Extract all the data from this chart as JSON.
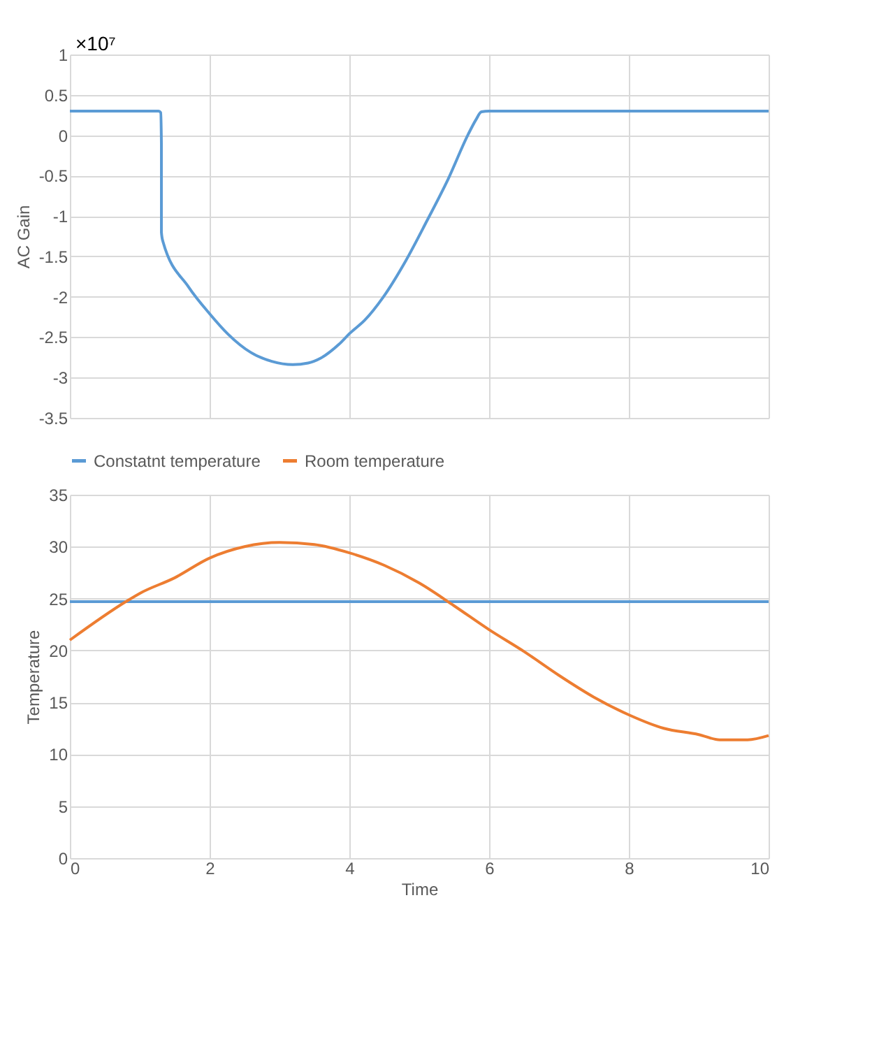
{
  "chart_data": [
    {
      "type": "line",
      "ylabel": "AC Gain",
      "annotations": [
        "×10⁷"
      ],
      "xlim": [
        0,
        10
      ],
      "xticks": [
        0,
        2,
        4,
        6,
        8,
        10
      ],
      "ylim": [
        -3.5,
        1
      ],
      "yticks": [
        -3.5,
        -3,
        -2.5,
        -2,
        -1.5,
        -1,
        -0.5,
        0,
        0.5,
        1
      ],
      "grid": true,
      "tick_labels": "y",
      "legend": false,
      "series": [
        {
          "color": "#5b9bd5",
          "x": [
            0,
            1.27,
            1.3,
            1.31,
            1.31,
            1.33,
            1.7,
            2.0,
            2.26,
            2.59,
            2.89,
            3.19,
            3.41,
            3.59,
            3.85,
            4.01,
            4.22,
            4.48,
            4.81,
            5.11,
            5.41,
            5.7,
            5.81,
            5.89,
            6.0,
            10
          ],
          "values": [
            0.3,
            0.3,
            0.28,
            -0.1,
            -1.2,
            -1.31,
            -1.88,
            -2.21,
            -2.46,
            -2.69,
            -2.8,
            -2.84,
            -2.82,
            -2.76,
            -2.59,
            -2.45,
            -2.29,
            -2.01,
            -1.55,
            -1.06,
            -0.55,
            0.01,
            0.19,
            0.29,
            0.3,
            0.3
          ]
        }
      ]
    },
    {
      "type": "line",
      "xlabel": "Time",
      "ylabel": "Temperature",
      "xlim": [
        0,
        10
      ],
      "xticks": [
        0,
        2,
        4,
        6,
        8,
        10
      ],
      "ylim": [
        0,
        35
      ],
      "yticks": [
        0,
        5,
        10,
        15,
        20,
        25,
        30,
        35
      ],
      "grid": true,
      "legend": "top",
      "series": [
        {
          "name": "Constatnt temperature",
          "color": "#5b9bd5",
          "x": [
            0,
            10
          ],
          "values": [
            24.7,
            24.7
          ]
        },
        {
          "name": "Room temperature",
          "color": "#ed7d31",
          "x": [
            0,
            0.8,
            1,
            1.5,
            2,
            2.5,
            3,
            3.5,
            4,
            4.5,
            5,
            5.5,
            6,
            6.5,
            7,
            7.5,
            8,
            8.5,
            9,
            9.3,
            9.7,
            10
          ],
          "values": [
            21.0,
            24.7,
            25.5,
            27.0,
            28.9,
            30.0,
            30.4,
            30.2,
            29.4,
            28.2,
            26.5,
            24.3,
            22.0,
            19.9,
            17.6,
            15.5,
            13.8,
            12.5,
            11.9,
            11.4,
            11.4,
            11.8
          ]
        }
      ]
    }
  ]
}
